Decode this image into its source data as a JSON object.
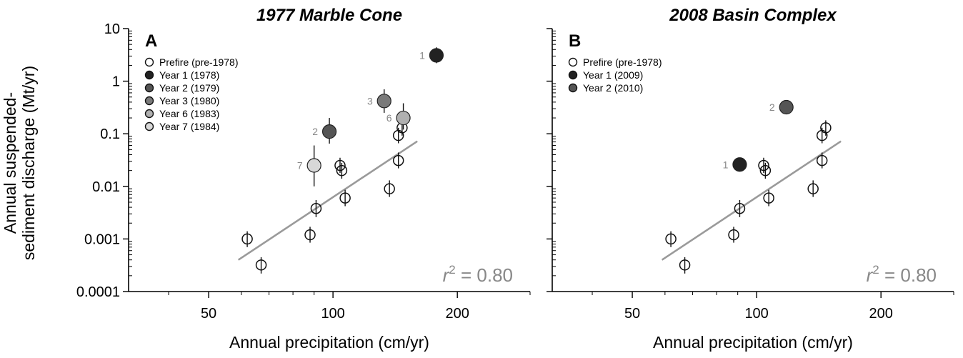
{
  "y_axis_title": [
    "Annual suspended-",
    "sediment discharge (Mt/yr)"
  ],
  "colors": {
    "prefire": "#ffffff",
    "year1": "#222222",
    "year2": "#555555",
    "year3": "#7a7a7a",
    "year6": "#b0b0b0",
    "year7": "#d8d8d8",
    "regression": "#9a9a9a",
    "axis": "#000000",
    "label_gray": "#888888"
  },
  "chart_data": [
    {
      "type": "scatter",
      "panel_letter": "A",
      "title": "1977 Marble Cone",
      "xlabel": "Annual precipitation (cm/yr)",
      "x_scale": "log",
      "y_scale": "log",
      "xlim": [
        32,
        300
      ],
      "ylim": [
        0.0001,
        10
      ],
      "x_ticks": [
        {
          "value": 50,
          "label": "50"
        },
        {
          "value": 100,
          "label": "100"
        },
        {
          "value": 200,
          "label": "200"
        }
      ],
      "y_ticks": [
        {
          "value": 10,
          "label": "10"
        },
        {
          "value": 1,
          "label": "1"
        },
        {
          "value": 0.1,
          "label": "0.1"
        },
        {
          "value": 0.01,
          "label": "0.01"
        },
        {
          "value": 0.001,
          "label": "0.001"
        },
        {
          "value": 0.0001,
          "label": "0.0001"
        }
      ],
      "legend": [
        {
          "label": "Prefire (pre-1978)",
          "color_key": "prefire"
        },
        {
          "label": "Year 1 (1978)",
          "color_key": "year1"
        },
        {
          "label": "Year 2 (1979)",
          "color_key": "year2"
        },
        {
          "label": "Year 3 (1980)",
          "color_key": "year3"
        },
        {
          "label": "Year 6 (1983)",
          "color_key": "year6"
        },
        {
          "label": "Year 7 (1984)",
          "color_key": "year7"
        }
      ],
      "prefire_points": [
        {
          "x": 62,
          "y": 0.001,
          "ylo": 0.0007,
          "yhi": 0.0014
        },
        {
          "x": 67,
          "y": 0.00032,
          "ylo": 0.00022,
          "yhi": 0.00045
        },
        {
          "x": 88,
          "y": 0.0012,
          "ylo": 0.00085,
          "yhi": 0.0017
        },
        {
          "x": 91,
          "y": 0.0038,
          "ylo": 0.0026,
          "yhi": 0.0055
        },
        {
          "x": 104,
          "y": 0.025,
          "ylo": 0.018,
          "yhi": 0.035
        },
        {
          "x": 105,
          "y": 0.02,
          "ylo": 0.014,
          "yhi": 0.028
        },
        {
          "x": 107,
          "y": 0.006,
          "ylo": 0.0042,
          "yhi": 0.0086
        },
        {
          "x": 137,
          "y": 0.009,
          "ylo": 0.0063,
          "yhi": 0.013
        },
        {
          "x": 144,
          "y": 0.031,
          "ylo": 0.022,
          "yhi": 0.044
        },
        {
          "x": 144,
          "y": 0.093,
          "ylo": 0.066,
          "yhi": 0.13
        },
        {
          "x": 147,
          "y": 0.13,
          "ylo": 0.092,
          "yhi": 0.18
        }
      ],
      "postfire_points": [
        {
          "label": "1",
          "color_key": "year1",
          "x": 178,
          "y": 3.1,
          "ylo": 2.2,
          "yhi": 4.4
        },
        {
          "label": "2",
          "color_key": "year2",
          "x": 98,
          "y": 0.11,
          "ylo": 0.065,
          "yhi": 0.2
        },
        {
          "label": "3",
          "color_key": "year3",
          "x": 133,
          "y": 0.42,
          "ylo": 0.25,
          "yhi": 0.7
        },
        {
          "label": "6",
          "color_key": "year6",
          "x": 148,
          "y": 0.2,
          "ylo": 0.12,
          "yhi": 0.38
        },
        {
          "label": "7",
          "color_key": "year7",
          "x": 90,
          "y": 0.025,
          "ylo": 0.01,
          "yhi": 0.06
        }
      ],
      "regression": {
        "x": [
          59,
          160
        ],
        "y": [
          0.0004,
          0.072
        ]
      },
      "annotation": {
        "prefix": "r",
        "superscript": "2",
        "text": " = 0.80"
      }
    },
    {
      "type": "scatter",
      "panel_letter": "B",
      "title": "2008 Basin Complex",
      "xlabel": "Annual precipitation (cm/yr)",
      "x_scale": "log",
      "y_scale": "log",
      "xlim": [
        32,
        300
      ],
      "ylim": [
        0.0001,
        10
      ],
      "x_ticks": [
        {
          "value": 50,
          "label": "50"
        },
        {
          "value": 100,
          "label": "100"
        },
        {
          "value": 200,
          "label": "200"
        }
      ],
      "y_ticks": [
        {
          "value": 10,
          "label": ""
        },
        {
          "value": 1,
          "label": ""
        },
        {
          "value": 0.1,
          "label": ""
        },
        {
          "value": 0.01,
          "label": ""
        },
        {
          "value": 0.001,
          "label": ""
        },
        {
          "value": 0.0001,
          "label": ""
        }
      ],
      "legend": [
        {
          "label": "Prefire (pre-1978)",
          "color_key": "prefire"
        },
        {
          "label": "Year 1 (2009)",
          "color_key": "year1"
        },
        {
          "label": "Year 2 (2010)",
          "color_key": "year2"
        }
      ],
      "prefire_points": [
        {
          "x": 62,
          "y": 0.001,
          "ylo": 0.0007,
          "yhi": 0.0014
        },
        {
          "x": 67,
          "y": 0.00032,
          "ylo": 0.00022,
          "yhi": 0.00045
        },
        {
          "x": 88,
          "y": 0.0012,
          "ylo": 0.00085,
          "yhi": 0.0017
        },
        {
          "x": 91,
          "y": 0.0038,
          "ylo": 0.0026,
          "yhi": 0.0055
        },
        {
          "x": 104,
          "y": 0.025,
          "ylo": 0.018,
          "yhi": 0.035
        },
        {
          "x": 105,
          "y": 0.02,
          "ylo": 0.014,
          "yhi": 0.028
        },
        {
          "x": 107,
          "y": 0.006,
          "ylo": 0.0042,
          "yhi": 0.0086
        },
        {
          "x": 137,
          "y": 0.009,
          "ylo": 0.0063,
          "yhi": 0.013
        },
        {
          "x": 144,
          "y": 0.031,
          "ylo": 0.022,
          "yhi": 0.044
        },
        {
          "x": 144,
          "y": 0.093,
          "ylo": 0.066,
          "yhi": 0.13
        },
        {
          "x": 147,
          "y": 0.13,
          "ylo": 0.092,
          "yhi": 0.18
        }
      ],
      "postfire_points": [
        {
          "label": "1",
          "color_key": "year1",
          "x": 91,
          "y": 0.026
        },
        {
          "label": "2",
          "color_key": "year2",
          "x": 118,
          "y": 0.32
        }
      ],
      "regression": {
        "x": [
          59,
          160
        ],
        "y": [
          0.0004,
          0.072
        ]
      },
      "annotation": {
        "prefix": "r",
        "superscript": "2",
        "text": " = 0.80"
      }
    }
  ]
}
